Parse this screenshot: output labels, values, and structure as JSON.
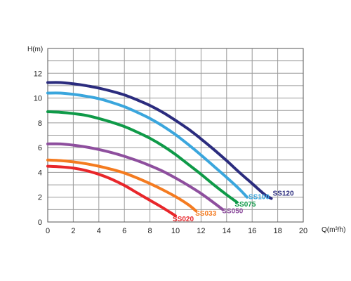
{
  "chart_data": {
    "type": "line",
    "title": "",
    "xlabel": "Q(m³/h)",
    "ylabel": "H(m)",
    "xlim": [
      0,
      20
    ],
    "ylim": [
      0,
      14
    ],
    "x_ticks": [
      0,
      2,
      4,
      6,
      8,
      10,
      12,
      14,
      16,
      18,
      20
    ],
    "y_ticks": [
      0,
      2,
      4,
      6,
      8,
      10,
      12
    ],
    "grid": true,
    "series": [
      {
        "name": "SS020",
        "color": "#e8262a",
        "x": [
          0,
          1,
          2,
          3,
          4,
          5,
          6,
          7,
          8,
          9,
          10
        ],
        "y": [
          4.5,
          4.45,
          4.35,
          4.15,
          3.85,
          3.45,
          2.95,
          2.35,
          1.75,
          1.15,
          0.5
        ]
      },
      {
        "name": "SS033",
        "color": "#f47b20",
        "x": [
          0,
          1,
          2,
          3,
          4,
          5,
          6,
          7,
          8,
          9,
          10,
          11,
          11.6
        ],
        "y": [
          5.0,
          4.95,
          4.85,
          4.7,
          4.5,
          4.25,
          3.95,
          3.55,
          3.1,
          2.6,
          2.05,
          1.4,
          0.9
        ]
      },
      {
        "name": "SS050",
        "color": "#8e4f9e",
        "x": [
          0,
          1,
          2,
          3,
          4,
          5,
          6,
          7,
          8,
          9,
          10,
          11,
          12,
          13,
          13.7
        ],
        "y": [
          6.3,
          6.3,
          6.2,
          6.05,
          5.85,
          5.6,
          5.3,
          4.95,
          4.55,
          4.1,
          3.55,
          2.95,
          2.3,
          1.55,
          1.0
        ]
      },
      {
        "name": "SS075",
        "color": "#0f9a48",
        "x": [
          0,
          1,
          2,
          3,
          4,
          5,
          6,
          7,
          8,
          9,
          10,
          11,
          12,
          13,
          14,
          14.8
        ],
        "y": [
          8.9,
          8.85,
          8.75,
          8.6,
          8.35,
          8.05,
          7.7,
          7.25,
          6.75,
          6.15,
          5.45,
          4.65,
          3.85,
          3.0,
          2.2,
          1.6
        ]
      },
      {
        "name": "SS100",
        "color": "#3aa6dd",
        "x": [
          0,
          1,
          2,
          3,
          4,
          5,
          6,
          7,
          8,
          9,
          10,
          11,
          12,
          13,
          14,
          15,
          15.6
        ],
        "y": [
          10.4,
          10.4,
          10.3,
          10.15,
          9.95,
          9.65,
          9.3,
          8.85,
          8.35,
          7.75,
          7.05,
          6.25,
          5.4,
          4.5,
          3.6,
          2.65,
          2.0
        ]
      },
      {
        "name": "SS120",
        "color": "#2b2c7e",
        "x": [
          0,
          1,
          2,
          3,
          4,
          5,
          6,
          7,
          8,
          9,
          10,
          11,
          12,
          13,
          14,
          15,
          16,
          17,
          17.5
        ],
        "y": [
          11.25,
          11.25,
          11.15,
          11.0,
          10.8,
          10.55,
          10.25,
          9.85,
          9.4,
          8.85,
          8.2,
          7.5,
          6.7,
          5.85,
          4.95,
          4.0,
          3.1,
          2.2,
          1.9
        ]
      }
    ]
  }
}
